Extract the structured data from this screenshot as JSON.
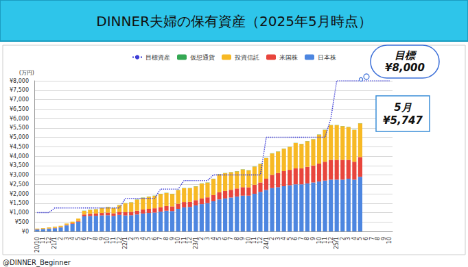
{
  "chart_data": {
    "type": "bar",
    "stacked": true,
    "title": "DINNER夫婦の保有資産（2025年5月時点）",
    "y_label": "(万円)",
    "source": "@DINNER_Beginner",
    "categories": [
      "20/10",
      "11",
      "12",
      "21/1",
      "2",
      "3",
      "4",
      "5",
      "6",
      "7",
      "8",
      "9",
      "10",
      "11",
      "12",
      "22/1",
      "2",
      "3",
      "4",
      "5",
      "6",
      "7",
      "8",
      "9",
      "10",
      "11",
      "12",
      "23/1",
      "2",
      "3",
      "4",
      "5",
      "6",
      "7",
      "8",
      "9",
      "10",
      "11",
      "12",
      "24/1",
      "2",
      "3",
      "4",
      "5",
      "6",
      "7",
      "8",
      "9",
      "10",
      "11",
      "12",
      "25/1",
      "2",
      "3",
      "4",
      "5",
      "6",
      "7",
      "8",
      "9",
      "10"
    ],
    "series": [
      {
        "name": "日本株",
        "color": "#4d86e0",
        "values": [
          100,
          120,
          140,
          170,
          210,
          320,
          400,
          520,
          800,
          820,
          830,
          850,
          860,
          820,
          880,
          850,
          860,
          900,
          950,
          980,
          1000,
          1050,
          1100,
          1080,
          1200,
          1280,
          1300,
          1380,
          1450,
          1500,
          1600,
          1700,
          1750,
          1800,
          1850,
          1900,
          1900,
          2000,
          2100,
          2200,
          2300,
          2350,
          2400,
          2450,
          2500,
          2500,
          2550,
          2600,
          2650,
          2700,
          2750,
          2750,
          2750,
          2800,
          2750,
          2900,
          null,
          null,
          null,
          null,
          null
        ]
      },
      {
        "name": "米国株",
        "color": "#e8453c",
        "values": [
          10,
          10,
          15,
          20,
          20,
          25,
          30,
          40,
          100,
          110,
          120,
          130,
          140,
          140,
          160,
          170,
          180,
          200,
          210,
          220,
          230,
          240,
          250,
          250,
          270,
          280,
          270,
          280,
          300,
          310,
          330,
          380,
          400,
          410,
          430,
          450,
          440,
          480,
          500,
          600,
          700,
          750,
          800,
          820,
          850,
          850,
          880,
          900,
          950,
          1000,
          1050,
          1050,
          1050,
          1000,
          950,
          1050,
          null,
          null,
          null,
          null,
          null
        ]
      },
      {
        "name": "投資信託",
        "color": "#f7b924",
        "values": [
          40,
          50,
          55,
          60,
          70,
          75,
          90,
          120,
          190,
          210,
          220,
          260,
          290,
          280,
          350,
          470,
          500,
          590,
          630,
          640,
          660,
          700,
          690,
          660,
          720,
          730,
          720,
          730,
          790,
          780,
          860,
          960,
          940,
          930,
          910,
          940,
          900,
          960,
          990,
          1090,
          1140,
          1140,
          1190,
          1220,
          1340,
          1290,
          1360,
          1390,
          1540,
          1690,
          1840,
          1840,
          1790,
          1740,
          1690,
          1787,
          null,
          null,
          null,
          null,
          null
        ]
      },
      {
        "name": "仮想通貨",
        "color": "#34a853",
        "values": [
          0,
          0,
          0,
          0,
          0,
          0,
          0,
          0,
          10,
          10,
          10,
          10,
          10,
          10,
          10,
          10,
          10,
          10,
          10,
          10,
          10,
          10,
          10,
          10,
          10,
          10,
          10,
          10,
          10,
          10,
          10,
          10,
          10,
          10,
          10,
          10,
          10,
          10,
          10,
          10,
          10,
          10,
          10,
          10,
          10,
          10,
          10,
          10,
          10,
          10,
          10,
          10,
          10,
          10,
          10,
          10,
          null,
          null,
          null,
          null,
          null
        ]
      },
      {
        "name": "目標資産",
        "type": "line",
        "line_style": "dotted",
        "color": "#3d3dd6",
        "values": [
          1000,
          1000,
          1000,
          1250,
          1250,
          1250,
          1250,
          1250,
          1250,
          1250,
          1250,
          1250,
          1250,
          1250,
          1250,
          1750,
          1750,
          1750,
          1750,
          1750,
          1750,
          2250,
          2250,
          2250,
          2250,
          2700,
          2700,
          2700,
          2700,
          2700,
          3000,
          3000,
          3000,
          3000,
          3000,
          3000,
          3000,
          3000,
          3000,
          5000,
          5000,
          5000,
          5000,
          5000,
          5000,
          5000,
          5000,
          5000,
          5000,
          5000,
          6000,
          8000,
          8000,
          8000,
          8000,
          8000,
          8000,
          8000,
          8000,
          8000,
          8000
        ]
      }
    ],
    "ylim": [
      0,
      8000
    ],
    "yticks": [
      {
        "value": 0,
        "label": "¥0"
      },
      {
        "value": 500,
        "label": "¥500"
      },
      {
        "value": 1000,
        "label": "¥1,000"
      },
      {
        "value": 1500,
        "label": "¥1,500"
      },
      {
        "value": 2000,
        "label": "¥2,000"
      },
      {
        "value": 2500,
        "label": "¥2,500"
      },
      {
        "value": 3000,
        "label": "¥3,000"
      },
      {
        "value": 3500,
        "label": "¥3,500"
      },
      {
        "value": 4000,
        "label": "¥4,000"
      },
      {
        "value": 4500,
        "label": "¥4,500"
      },
      {
        "value": 5000,
        "label": "¥5,000"
      },
      {
        "value": 5500,
        "label": "¥5,500"
      },
      {
        "value": 6000,
        "label": "¥6,000"
      },
      {
        "value": 6500,
        "label": "¥6,500"
      },
      {
        "value": 7000,
        "label": "¥7,000"
      },
      {
        "value": 7500,
        "label": "¥7,500"
      },
      {
        "value": 8000,
        "label": "¥8,000"
      }
    ],
    "grid": true,
    "legend": "top",
    "annotations": [
      {
        "lines": [
          "目標",
          "¥8,000"
        ]
      },
      {
        "lines": [
          "5月",
          "¥5,747"
        ]
      }
    ]
  }
}
